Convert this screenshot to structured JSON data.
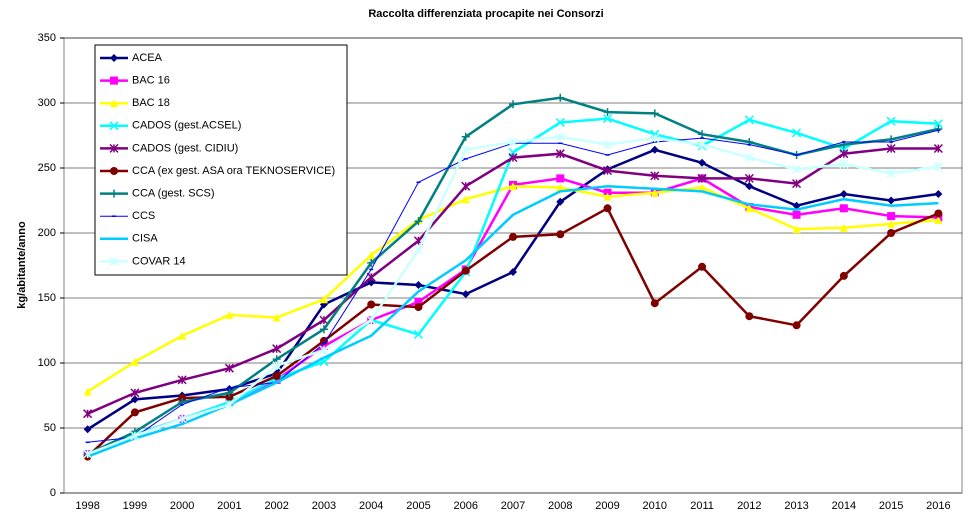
{
  "chart_data": {
    "type": "line",
    "title": "Raccolta differenziata procapite nei Consorzi",
    "ylabel": "kg/abitante/anno",
    "categories": [
      "1998",
      "1999",
      "2000",
      "2001",
      "2002",
      "2003",
      "2004",
      "2005",
      "2006",
      "2007",
      "2008",
      "2009",
      "2010",
      "2011",
      "2012",
      "2013",
      "2014",
      "2015",
      "2016"
    ],
    "ylim": [
      0,
      350
    ],
    "yticks": [
      0,
      50,
      100,
      150,
      200,
      250,
      300,
      350
    ],
    "grid": true,
    "legend": "upper left",
    "series": [
      {
        "name": "ACEA",
        "color": "#000080",
        "marker": "diamond",
        "values": [
          49,
          72,
          75,
          80,
          92,
          145,
          162,
          160,
          153,
          170,
          224,
          249,
          264,
          254,
          236,
          221,
          230,
          225,
          230
        ]
      },
      {
        "name": "BAC 16",
        "color": "#ff00ff",
        "marker": "square",
        "values": [
          30,
          45,
          57,
          70,
          87,
          113,
          133,
          147,
          172,
          237,
          242,
          231,
          231,
          242,
          220,
          214,
          219,
          213,
          212
        ]
      },
      {
        "name": "BAC 18",
        "color": "#ffff00",
        "marker": "triangle",
        "values": [
          78,
          101,
          121,
          137,
          135,
          149,
          183,
          210,
          226,
          236,
          235,
          228,
          231,
          235,
          219,
          203,
          204,
          207,
          210
        ]
      },
      {
        "name": "CADOS (gest.ACSEL)",
        "color": "#00ffff",
        "marker": "x",
        "values": [
          30,
          45,
          57,
          70,
          88,
          101,
          133,
          122,
          170,
          262,
          285,
          288,
          276,
          267,
          287,
          277,
          265,
          286,
          284
        ]
      },
      {
        "name": "CADOS (gest. CIDIU)",
        "color": "#800080",
        "marker": "star",
        "values": [
          61,
          77,
          87,
          96,
          111,
          133,
          166,
          194,
          236,
          258,
          261,
          248,
          244,
          242,
          242,
          238,
          261,
          265,
          265
        ]
      },
      {
        "name": "CCA (ex gest. ASA ora TEKNOSERVICE)",
        "color": "#800000",
        "marker": "circle",
        "values": [
          28,
          62,
          73,
          74,
          90,
          117,
          145,
          143,
          171,
          197,
          199,
          219,
          146,
          174,
          136,
          129,
          167,
          200,
          215
        ]
      },
      {
        "name": "CCA (gest. SCS)",
        "color": "#008080",
        "marker": "plus",
        "values": [
          30,
          47,
          70,
          77,
          103,
          126,
          177,
          209,
          274,
          299,
          304,
          293,
          292,
          276,
          270,
          260,
          268,
          272,
          280
        ]
      },
      {
        "name": "CCS",
        "color": "#0000ff",
        "marker": "dash",
        "values": [
          39,
          43,
          68,
          81,
          85,
          115,
          172,
          239,
          257,
          269,
          269,
          260,
          270,
          273,
          268,
          260,
          270,
          270,
          279
        ]
      },
      {
        "name": "CISA",
        "color": "#00ccff",
        "marker": "none",
        "values": [
          28,
          42,
          53,
          68,
          85,
          104,
          121,
          155,
          179,
          214,
          232,
          236,
          234,
          232,
          222,
          218,
          226,
          221,
          223
        ]
      },
      {
        "name": "COVAR 14",
        "color": "#ccffff",
        "marker": "star",
        "values": [
          30,
          44,
          57,
          68,
          98,
          110,
          133,
          187,
          264,
          270,
          274,
          268,
          273,
          268,
          258,
          249,
          253,
          246,
          251
        ]
      }
    ]
  }
}
